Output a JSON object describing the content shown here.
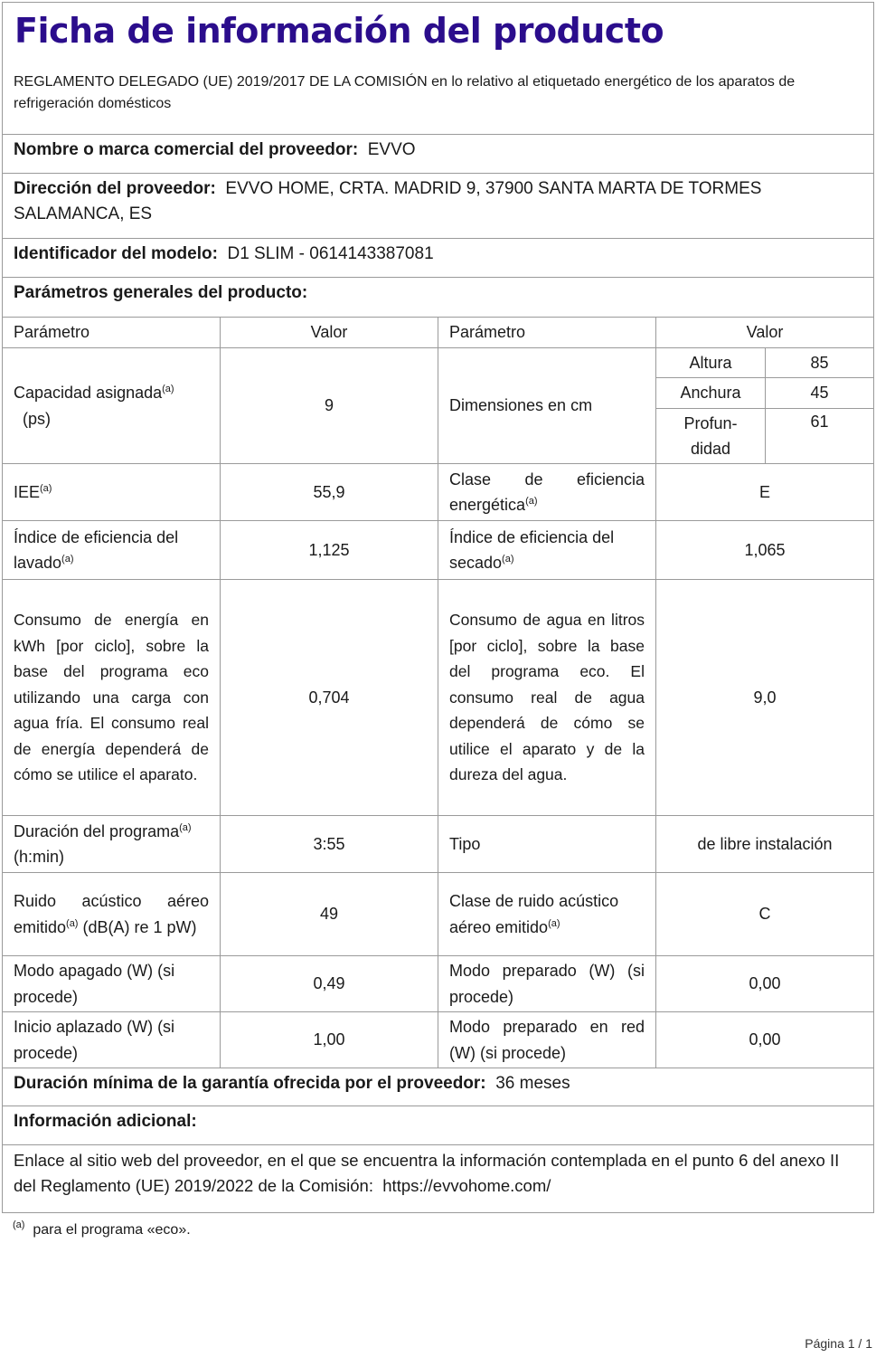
{
  "title": "Ficha de información del producto",
  "regulation": "REGLAMENTO DELEGADO (UE) 2019/2017 DE LA COMISIÓN en lo relativo al etiquetado energético de los aparatos de refrigeración domésticos",
  "supplier_name": {
    "label": "Nombre o marca comercial del proveedor:",
    "value": "EVVO"
  },
  "supplier_address": {
    "label": "Dirección del proveedor:",
    "value": "EVVO HOME, CRTA. MADRID 9, 37900 SANTA MARTA DE TORMES SALAMANCA, ES"
  },
  "model_id": {
    "label": "Identificador del modelo:",
    "value": "D1 SLIM - 0614143387081"
  },
  "general_params_label": "Parámetros generales del producto:",
  "table": {
    "headers": [
      "Parámetro",
      "Valor",
      "Parámetro",
      "Valor"
    ],
    "sup": "(a)",
    "capacity": {
      "label": "Capacidad asignada",
      "unit": "(ps)",
      "value": "9"
    },
    "dimensions": {
      "label": "Dimensiones en cm",
      "items": [
        {
          "name": "Altura",
          "value": "85"
        },
        {
          "name": "Anchura",
          "value": "45"
        },
        {
          "name": "Profun-didad",
          "value": "61"
        }
      ]
    },
    "rows": [
      {
        "p1": "IEE",
        "v1": "55,9",
        "p2": "Clase de eficiencia energética",
        "v2": "E"
      },
      {
        "p1": "Índice de eficiencia del lavado",
        "v1": "1,125",
        "p2": "Índice de eficiencia del secado",
        "v2": "1,065"
      },
      {
        "p1": "Consumo de energía en kWh [por ciclo], sobre la base del programa eco utilizando una carga con agua fría. El consumo real de energía dependerá de cómo se utilice el aparato.",
        "v1": "0,704",
        "p2": "Consumo de agua en litros [por ciclo], sobre la base del programa eco. El consumo real de agua dependerá de cómo se utilice el aparato y de la dureza del agua.",
        "v2": "9,0"
      },
      {
        "p1": "Duración del programa",
        "p1b": "(h:min)",
        "v1": "3:55",
        "p2": "Tipo",
        "v2": "de libre instalación"
      },
      {
        "p1": "Ruido acústico aéreo emitido",
        "p1b": "(dB(A) re 1 pW)",
        "v1": "49",
        "p2": "Clase de ruido acústico aéreo emitido",
        "v2": "C"
      },
      {
        "p1": "Modo apagado (W) (si procede)",
        "v1": "0,49",
        "p2": "Modo preparado (W) (si procede)",
        "v2": "0,00"
      },
      {
        "p1": "Inicio aplazado (W) (si procede)",
        "v1": "1,00",
        "p2": "Modo preparado en red (W) (si procede)",
        "v2": "0,00"
      }
    ]
  },
  "warranty": {
    "label": "Duración mínima de la garantía ofrecida por el proveedor:",
    "value": "36 meses"
  },
  "additional_label": "Información adicional:",
  "link_text": "Enlace al sitio web del proveedor, en el que se encuentra la información contemplada en el punto 6 del anexo II del Reglamento (UE) 2019/2022 de la Comisión:",
  "link_url": "https://evvohome.com/",
  "footnote": {
    "mark": "(a)",
    "text": "para el programa «eco»."
  },
  "page": "Página 1 / 1"
}
